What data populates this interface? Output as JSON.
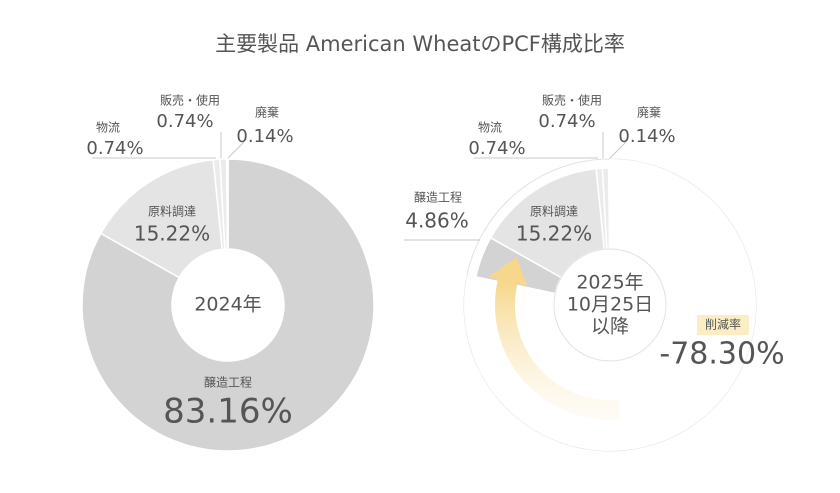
{
  "title": "主要製品 American WheatのPCF構成比率",
  "chart_data": [
    {
      "type": "donut",
      "center": [
        "2024年"
      ],
      "categories": [
        "醸造工程",
        "原料調達",
        "物流",
        "販売・使用",
        "廃棄"
      ],
      "values": [
        83.16,
        15.22,
        0.74,
        0.74,
        0.14
      ],
      "value_labels": [
        "83.16%",
        "15.22%",
        "0.74%",
        "0.74%",
        "0.14%"
      ],
      "colors": [
        "#d3d3d3",
        "#e4e4e4",
        "#ebebeb",
        "#ebebeb",
        "#ebebeb"
      ]
    },
    {
      "type": "donut",
      "center": [
        "2025年",
        "10月25日",
        "以降"
      ],
      "categories": [
        "醸造工程",
        "原料調達",
        "物流",
        "販売・使用",
        "廃棄"
      ],
      "values": [
        4.86,
        15.22,
        0.74,
        0.74,
        0.14
      ],
      "value_labels": [
        "4.86%",
        "15.22%",
        "0.74%",
        "0.74%",
        "0.14%"
      ],
      "colors": [
        "#d3d3d3",
        "#e4e4e4",
        "#ebebeb",
        "#ebebeb",
        "#ebebeb"
      ],
      "reduction": {
        "label": "削減率",
        "value": -78.3,
        "value_label": "-78.30%"
      }
    }
  ]
}
